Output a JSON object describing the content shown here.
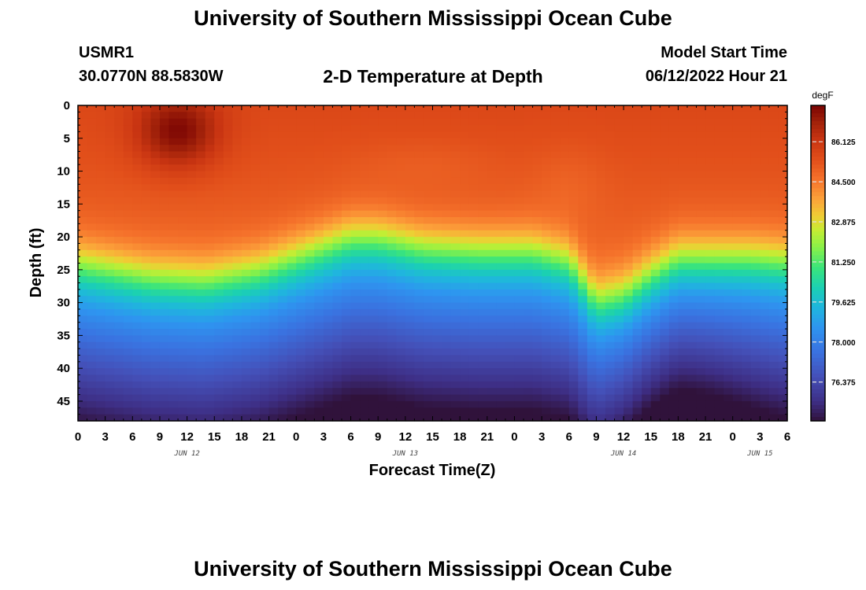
{
  "header": {
    "title": "University of Southern Mississippi Ocean Cube",
    "station": "USMR1",
    "coords": "30.0770N  88.5830W",
    "subtitle": "2-D Temperature at Depth",
    "model_start_label": "Model Start Time",
    "model_start_value": "06/12/2022 Hour 21"
  },
  "footer": {
    "title": "University of Southern Mississippi Ocean Cube"
  },
  "chart_data": {
    "type": "heatmap",
    "title": "2-D Temperature at Depth",
    "xlabel": "Forecast Time(Z)",
    "ylabel": "Depth (ft)",
    "x_range_hours": [
      0,
      78
    ],
    "x_ticks": [
      {
        "h": 0,
        "label": "0"
      },
      {
        "h": 3,
        "label": "3"
      },
      {
        "h": 6,
        "label": "6"
      },
      {
        "h": 9,
        "label": "9"
      },
      {
        "h": 12,
        "label": "12"
      },
      {
        "h": 15,
        "label": "15"
      },
      {
        "h": 18,
        "label": "18"
      },
      {
        "h": 21,
        "label": "21"
      },
      {
        "h": 24,
        "label": "0"
      },
      {
        "h": 27,
        "label": "3"
      },
      {
        "h": 30,
        "label": "6"
      },
      {
        "h": 33,
        "label": "9"
      },
      {
        "h": 36,
        "label": "12"
      },
      {
        "h": 39,
        "label": "15"
      },
      {
        "h": 42,
        "label": "18"
      },
      {
        "h": 45,
        "label": "21"
      },
      {
        "h": 48,
        "label": "0"
      },
      {
        "h": 51,
        "label": "3"
      },
      {
        "h": 54,
        "label": "6"
      },
      {
        "h": 57,
        "label": "9"
      },
      {
        "h": 60,
        "label": "12"
      },
      {
        "h": 63,
        "label": "15"
      },
      {
        "h": 66,
        "label": "18"
      },
      {
        "h": 69,
        "label": "21"
      },
      {
        "h": 72,
        "label": "0"
      },
      {
        "h": 75,
        "label": "3"
      },
      {
        "h": 78,
        "label": "6"
      }
    ],
    "date_labels": [
      {
        "h": 12,
        "label": "JUN 12"
      },
      {
        "h": 36,
        "label": "JUN 13"
      },
      {
        "h": 60,
        "label": "JUN 14"
      },
      {
        "h": 75,
        "label": "JUN 15"
      }
    ],
    "y_range_ft": [
      0,
      48
    ],
    "y_ticks": [
      0,
      5,
      10,
      15,
      20,
      25,
      30,
      35,
      40,
      45
    ],
    "colorbar": {
      "unit": "degF",
      "range": [
        74.8,
        87.6
      ],
      "labels": [
        "86.125",
        "84.500",
        "82.875",
        "81.250",
        "79.625",
        "78.000",
        "76.375"
      ],
      "label_values": [
        86.125,
        84.5,
        82.875,
        81.25,
        79.625,
        78.0,
        76.375
      ]
    },
    "colormap": [
      {
        "v": 74.8,
        "c": "#30123b"
      },
      {
        "v": 75.6,
        "c": "#3e2f86"
      },
      {
        "v": 76.6,
        "c": "#4450b8"
      },
      {
        "v": 77.6,
        "c": "#3a72e0"
      },
      {
        "v": 78.6,
        "c": "#2e95f0"
      },
      {
        "v": 79.4,
        "c": "#1fb6dd"
      },
      {
        "v": 80.2,
        "c": "#1bd0b3"
      },
      {
        "v": 81.0,
        "c": "#3ae47c"
      },
      {
        "v": 81.8,
        "c": "#86f14a"
      },
      {
        "v": 82.5,
        "c": "#c2ee34"
      },
      {
        "v": 83.1,
        "c": "#f0cd34"
      },
      {
        "v": 83.8,
        "c": "#fca13a"
      },
      {
        "v": 84.6,
        "c": "#f5722b"
      },
      {
        "v": 85.4,
        "c": "#e14e1a"
      },
      {
        "v": 86.2,
        "c": "#c93512"
      },
      {
        "v": 86.9,
        "c": "#a2220a"
      },
      {
        "v": 87.6,
        "c": "#7a0403"
      }
    ],
    "model": {
      "description": "Approximate field: warm mixed layer over cooler water, thermocline depth varying with time",
      "thermocline_depth_ft_by_hour": [
        [
          0,
          21.5
        ],
        [
          8,
          23.5
        ],
        [
          14,
          24
        ],
        [
          20,
          22.5
        ],
        [
          26,
          19.5
        ],
        [
          30,
          17.5
        ],
        [
          33,
          17.5
        ],
        [
          38,
          19
        ],
        [
          44,
          19.5
        ],
        [
          50,
          19.5
        ],
        [
          54,
          21
        ],
        [
          57,
          27
        ],
        [
          60,
          26
        ],
        [
          63,
          23
        ],
        [
          66,
          20.5
        ],
        [
          70,
          20.5
        ],
        [
          74,
          20.5
        ],
        [
          78,
          21
        ]
      ],
      "surface_peak": {
        "hour": 11,
        "depth_ft": 4,
        "value_degF": 87.6
      }
    }
  }
}
